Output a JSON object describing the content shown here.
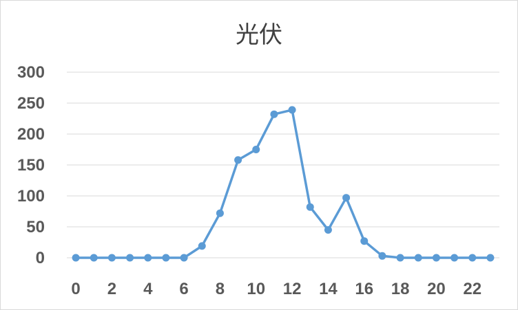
{
  "chart_data": {
    "type": "line",
    "title": "光伏",
    "xlabel": "",
    "ylabel": "",
    "x": [
      0,
      1,
      2,
      3,
      4,
      5,
      6,
      7,
      8,
      9,
      10,
      11,
      12,
      13,
      14,
      15,
      16,
      17,
      18,
      19,
      20,
      21,
      22,
      23
    ],
    "x_tick_labels": [
      "0",
      "2",
      "4",
      "6",
      "8",
      "10",
      "12",
      "14",
      "16",
      "18",
      "20",
      "22"
    ],
    "y_tick_labels": [
      "0",
      "50",
      "100",
      "150",
      "200",
      "250",
      "300"
    ],
    "xlim": [
      0,
      23
    ],
    "ylim": [
      0,
      300
    ],
    "grid": true,
    "legend": "none",
    "series": [
      {
        "values": [
          0,
          0,
          0,
          0,
          0,
          0,
          0,
          19,
          72,
          158,
          175,
          232,
          239,
          82,
          45,
          97,
          27,
          3,
          0,
          0,
          0,
          0,
          0,
          0
        ],
        "color": "#5b9bd5"
      }
    ]
  }
}
